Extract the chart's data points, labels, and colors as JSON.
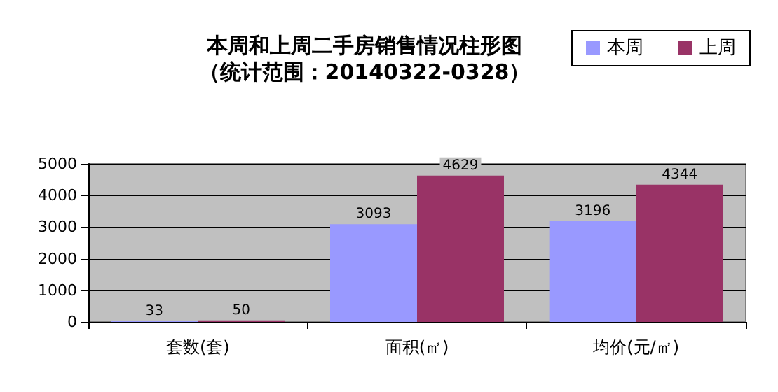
{
  "chart_data": {
    "type": "bar",
    "title": "本周和上周二手房销售情况柱形图",
    "subtitle": "（统计范围：20140322-0328）",
    "categories": [
      "套数(套)",
      "面积(㎡)",
      "均价(元/㎡)"
    ],
    "series": [
      {
        "name": "本周",
        "color": "#9999ff",
        "values": [
          33,
          3093,
          3196
        ]
      },
      {
        "name": "上周",
        "color": "#993366",
        "values": [
          50,
          4629,
          4344
        ]
      }
    ],
    "ylim": [
      0,
      5000
    ],
    "yticks": [
      0,
      1000,
      2000,
      3000,
      4000,
      5000
    ],
    "grid": "y",
    "legend": "top right",
    "data_labels": true
  }
}
